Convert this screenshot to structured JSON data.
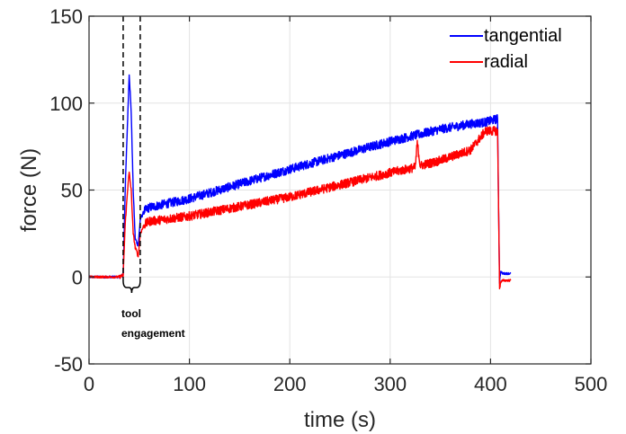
{
  "chart_data": {
    "type": "line",
    "title": "",
    "xlabel": "time (s)",
    "ylabel": "force (N)",
    "xlim": [
      0,
      500
    ],
    "ylim": [
      -50,
      150
    ],
    "xticks": [
      0,
      100,
      200,
      300,
      400,
      500
    ],
    "yticks": [
      -50,
      0,
      50,
      100,
      150
    ],
    "grid": true,
    "legend_position": "top-right",
    "series": [
      {
        "name": "tangential",
        "color": "#0000ff",
        "x": [
          0,
          30,
          34,
          36,
          39,
          40,
          42,
          44,
          46,
          49,
          51,
          55,
          60,
          100,
          200,
          300,
          350,
          380,
          395,
          407,
          408,
          409,
          410,
          412,
          420
        ],
        "y": [
          0,
          0,
          1,
          50,
          100,
          117,
          95,
          50,
          22,
          18,
          33,
          38,
          40,
          45,
          62,
          78,
          85,
          88,
          89,
          91,
          40,
          -3,
          3,
          2,
          2
        ]
      },
      {
        "name": "radial",
        "color": "#ff0000",
        "x": [
          0,
          30,
          34,
          36,
          39,
          40,
          42,
          44,
          46,
          49,
          51,
          55,
          60,
          100,
          200,
          300,
          325,
          327,
          330,
          350,
          380,
          395,
          407,
          408,
          409,
          410,
          412,
          420
        ],
        "y": [
          0,
          0,
          1,
          30,
          55,
          60,
          50,
          25,
          17,
          12,
          25,
          30,
          32,
          35,
          46,
          60,
          63,
          77,
          64,
          67,
          73,
          84,
          84,
          40,
          -7,
          -3,
          -2,
          -2
        ]
      }
    ],
    "annotations": [
      {
        "text_lines": [
          "tool",
          "engagement"
        ],
        "x_range": [
          34,
          51
        ]
      }
    ]
  }
}
